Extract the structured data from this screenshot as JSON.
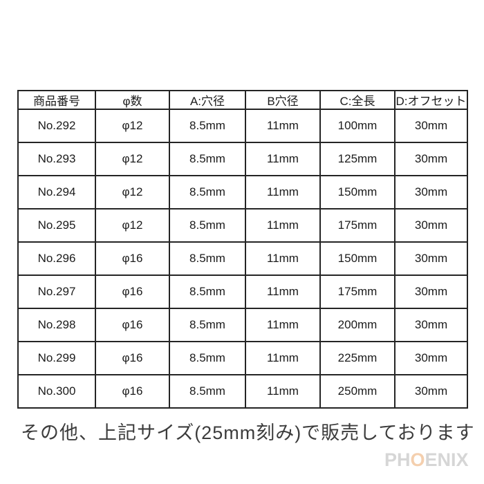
{
  "table": {
    "headers": [
      "商品番号",
      "φ数",
      "A:穴径",
      "B穴径",
      "C:全長",
      "D:オフセット"
    ],
    "rows": [
      [
        "No.292",
        "φ12",
        "8.5mm",
        "11mm",
        "100mm",
        "30mm"
      ],
      [
        "No.293",
        "φ12",
        "8.5mm",
        "11mm",
        "125mm",
        "30mm"
      ],
      [
        "No.294",
        "φ12",
        "8.5mm",
        "11mm",
        "150mm",
        "30mm"
      ],
      [
        "No.295",
        "φ12",
        "8.5mm",
        "11mm",
        "175mm",
        "30mm"
      ],
      [
        "No.296",
        "φ16",
        "8.5mm",
        "11mm",
        "150mm",
        "30mm"
      ],
      [
        "No.297",
        "φ16",
        "8.5mm",
        "11mm",
        "175mm",
        "30mm"
      ],
      [
        "No.298",
        "φ16",
        "8.5mm",
        "11mm",
        "200mm",
        "30mm"
      ],
      [
        "No.299",
        "φ16",
        "8.5mm",
        "11mm",
        "225mm",
        "30mm"
      ],
      [
        "No.300",
        "φ16",
        "8.5mm",
        "11mm",
        "250mm",
        "30mm"
      ]
    ]
  },
  "footnote": "その他、上記サイズ(25mm刻み)で販売しております",
  "logo": {
    "prefix": "PH",
    "o": "O",
    "suffix": "ENIX",
    "letter_color": "#d6d6d6",
    "o_color": "#f4cfae"
  },
  "colors": {
    "background": "#ffffff",
    "table_border": "#242424",
    "text": "#1b1b1b",
    "footnote_text": "#3c3c3c"
  }
}
